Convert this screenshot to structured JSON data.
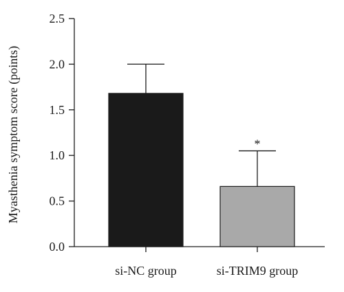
{
  "chart_data": {
    "type": "bar",
    "title": "",
    "xlabel": "",
    "ylabel": "Myasthenia symptom score (points)",
    "ylim": [
      0,
      2.5
    ],
    "yticks": [
      "0.0",
      "0.5",
      "1.0",
      "1.5",
      "2.0",
      "2.5"
    ],
    "grid": false,
    "categories": [
      "si-NC group",
      "si-TRIM9 group"
    ],
    "values": [
      1.68,
      0.66
    ],
    "error_bars": [
      0.32,
      0.39
    ],
    "annotations": [
      "",
      "*"
    ],
    "colors": [
      "#1a1a1a",
      "#a9a9a9"
    ]
  }
}
